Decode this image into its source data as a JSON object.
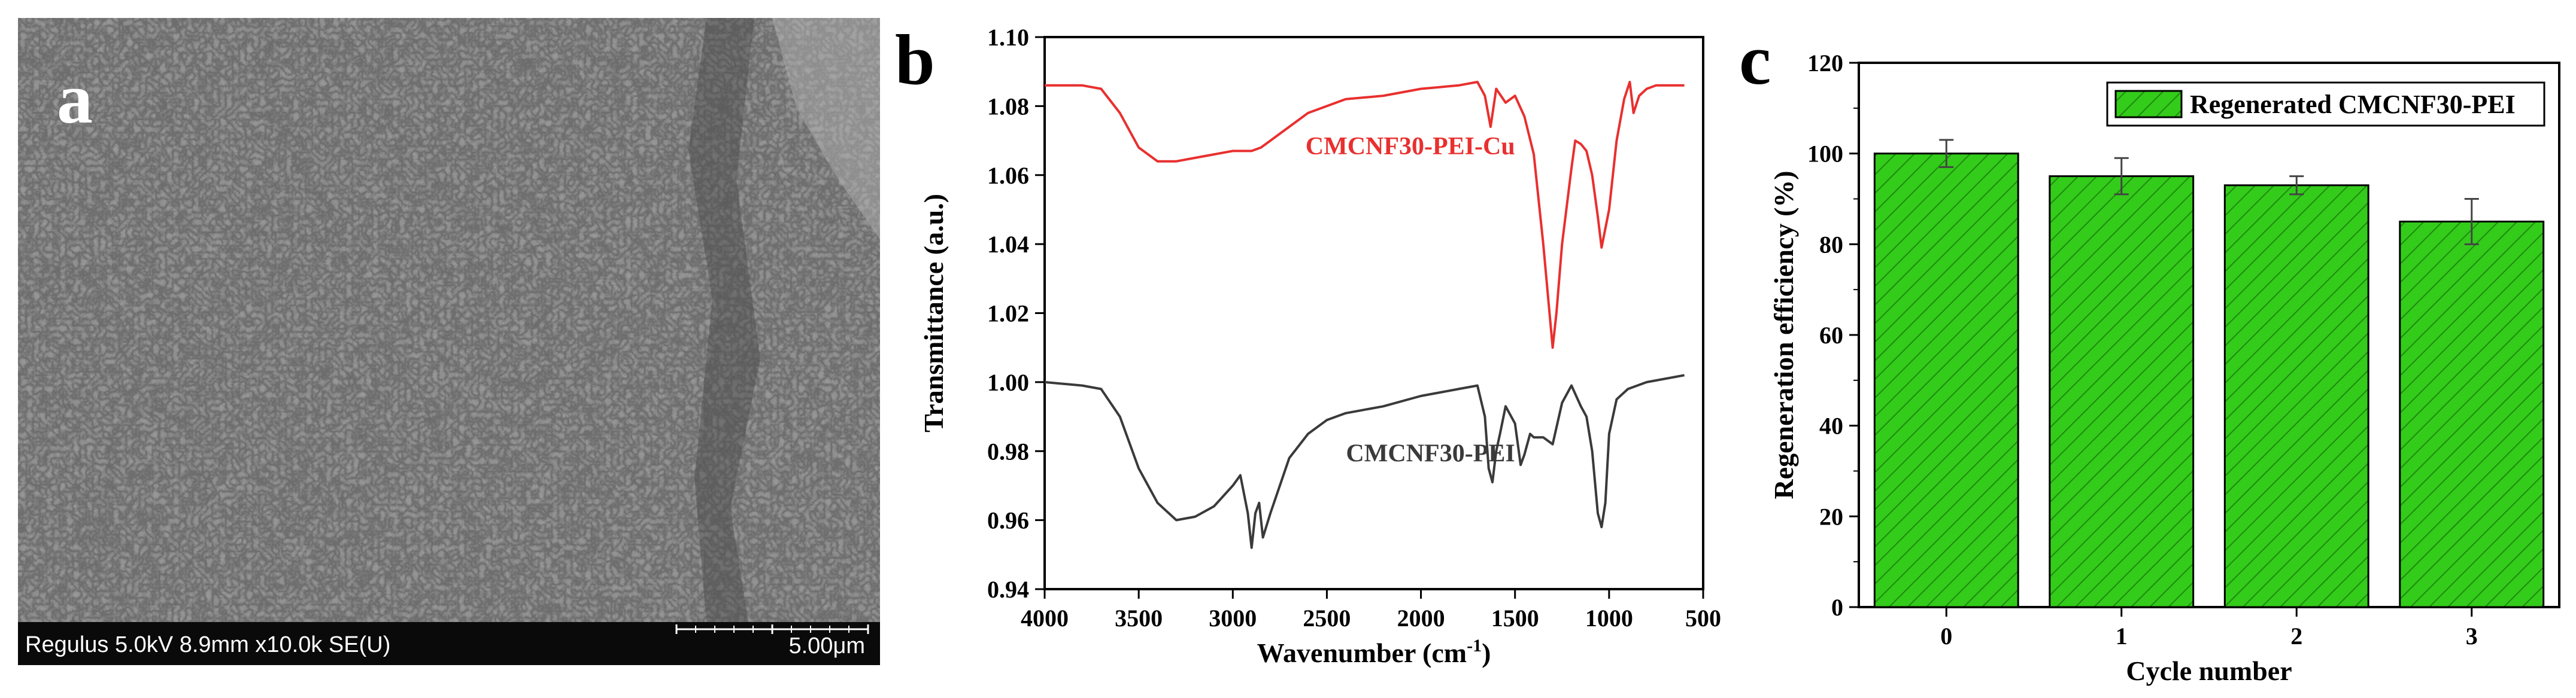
{
  "figure": {
    "panels": [
      {
        "id": "a",
        "letter": "a"
      },
      {
        "id": "b",
        "letter": "b"
      },
      {
        "id": "c",
        "letter": "c"
      }
    ]
  },
  "sem": {
    "info_left": "Regulus 5.0kV 8.9mm x10.0k SE(U)",
    "scale_label": "5.00μm"
  },
  "colors": {
    "red_curve": "#e8302f",
    "black_curve": "#3a3a3a",
    "bar_fill": "#33cc1a",
    "bar_hatch": "#1f8a10"
  },
  "chart_data": [
    {
      "type": "line",
      "panel": "b",
      "title": "",
      "xlabel": "Wavenumber (cm",
      "xlabel_sup": "-1",
      "xlabel_close": ")",
      "ylabel": "Transmittance (a.u.)",
      "xlim": [
        4000,
        500
      ],
      "ylim": [
        0.94,
        1.1
      ],
      "x_ticks": [
        "4000",
        "3500",
        "3000",
        "2500",
        "2000",
        "1500",
        "1000",
        "500"
      ],
      "y_ticks": [
        "0.94",
        "0.96",
        "0.98",
        "1.00",
        "1.02",
        "1.04",
        "1.06",
        "1.08",
        "1.10"
      ],
      "series": [
        {
          "name": "CMCNF30-PEI-Cu",
          "color": "#e8302f",
          "points": [
            [
              4000,
              1.086
            ],
            [
              3800,
              1.086
            ],
            [
              3700,
              1.085
            ],
            [
              3600,
              1.078
            ],
            [
              3500,
              1.068
            ],
            [
              3400,
              1.064
            ],
            [
              3300,
              1.064
            ],
            [
              3200,
              1.065
            ],
            [
              3100,
              1.066
            ],
            [
              3000,
              1.067
            ],
            [
              2900,
              1.067
            ],
            [
              2850,
              1.068
            ],
            [
              2800,
              1.07
            ],
            [
              2600,
              1.078
            ],
            [
              2400,
              1.082
            ],
            [
              2200,
              1.083
            ],
            [
              2000,
              1.085
            ],
            [
              1800,
              1.086
            ],
            [
              1700,
              1.087
            ],
            [
              1660,
              1.083
            ],
            [
              1630,
              1.074
            ],
            [
              1600,
              1.085
            ],
            [
              1550,
              1.081
            ],
            [
              1500,
              1.083
            ],
            [
              1450,
              1.077
            ],
            [
              1400,
              1.066
            ],
            [
              1350,
              1.04
            ],
            [
              1300,
              1.01
            ],
            [
              1280,
              1.02
            ],
            [
              1250,
              1.04
            ],
            [
              1200,
              1.062
            ],
            [
              1180,
              1.07
            ],
            [
              1150,
              1.069
            ],
            [
              1120,
              1.067
            ],
            [
              1090,
              1.06
            ],
            [
              1060,
              1.048
            ],
            [
              1040,
              1.039
            ],
            [
              1000,
              1.05
            ],
            [
              960,
              1.07
            ],
            [
              920,
              1.082
            ],
            [
              890,
              1.087
            ],
            [
              870,
              1.078
            ],
            [
              840,
              1.083
            ],
            [
              800,
              1.085
            ],
            [
              750,
              1.086
            ],
            [
              700,
              1.086
            ],
            [
              650,
              1.086
            ],
            [
              600,
              1.086
            ]
          ],
          "label_pos": [
            1500,
            1.066
          ]
        },
        {
          "name": "CMCNF30-PEI",
          "color": "#3a3a3a",
          "points": [
            [
              4000,
              1.0
            ],
            [
              3800,
              0.999
            ],
            [
              3700,
              0.998
            ],
            [
              3600,
              0.99
            ],
            [
              3500,
              0.975
            ],
            [
              3400,
              0.965
            ],
            [
              3300,
              0.96
            ],
            [
              3200,
              0.961
            ],
            [
              3100,
              0.964
            ],
            [
              3000,
              0.97
            ],
            [
              2960,
              0.973
            ],
            [
              2920,
              0.962
            ],
            [
              2900,
              0.952
            ],
            [
              2880,
              0.962
            ],
            [
              2860,
              0.965
            ],
            [
              2840,
              0.955
            ],
            [
              2800,
              0.962
            ],
            [
              2700,
              0.978
            ],
            [
              2600,
              0.985
            ],
            [
              2500,
              0.989
            ],
            [
              2400,
              0.991
            ],
            [
              2200,
              0.993
            ],
            [
              2000,
              0.996
            ],
            [
              1800,
              0.998
            ],
            [
              1700,
              0.999
            ],
            [
              1660,
              0.99
            ],
            [
              1640,
              0.975
            ],
            [
              1620,
              0.971
            ],
            [
              1600,
              0.98
            ],
            [
              1580,
              0.985
            ],
            [
              1550,
              0.993
            ],
            [
              1500,
              0.988
            ],
            [
              1470,
              0.976
            ],
            [
              1450,
              0.979
            ],
            [
              1420,
              0.985
            ],
            [
              1400,
              0.984
            ],
            [
              1350,
              0.984
            ],
            [
              1300,
              0.982
            ],
            [
              1250,
              0.994
            ],
            [
              1200,
              0.999
            ],
            [
              1150,
              0.993
            ],
            [
              1120,
              0.99
            ],
            [
              1090,
              0.98
            ],
            [
              1060,
              0.962
            ],
            [
              1040,
              0.958
            ],
            [
              1020,
              0.965
            ],
            [
              1000,
              0.985
            ],
            [
              960,
              0.995
            ],
            [
              900,
              0.998
            ],
            [
              850,
              0.999
            ],
            [
              800,
              1.0
            ],
            [
              700,
              1.001
            ],
            [
              600,
              1.002
            ]
          ],
          "label_pos": [
            1500,
            0.977
          ]
        }
      ]
    },
    {
      "type": "bar",
      "panel": "c",
      "title": "",
      "xlabel": "Cycle number",
      "ylabel": "Regeneration efficiency (%)",
      "ylim": [
        0,
        120
      ],
      "categories": [
        "0",
        "1",
        "2",
        "3"
      ],
      "y_ticks": [
        "0",
        "20",
        "40",
        "60",
        "80",
        "100",
        "120"
      ],
      "series": [
        {
          "name": "Regenerated CMCNF30-PEI",
          "values": [
            100,
            95,
            93,
            85
          ],
          "errors": [
            3,
            4,
            2,
            5
          ]
        }
      ],
      "legend": "top-right"
    }
  ]
}
